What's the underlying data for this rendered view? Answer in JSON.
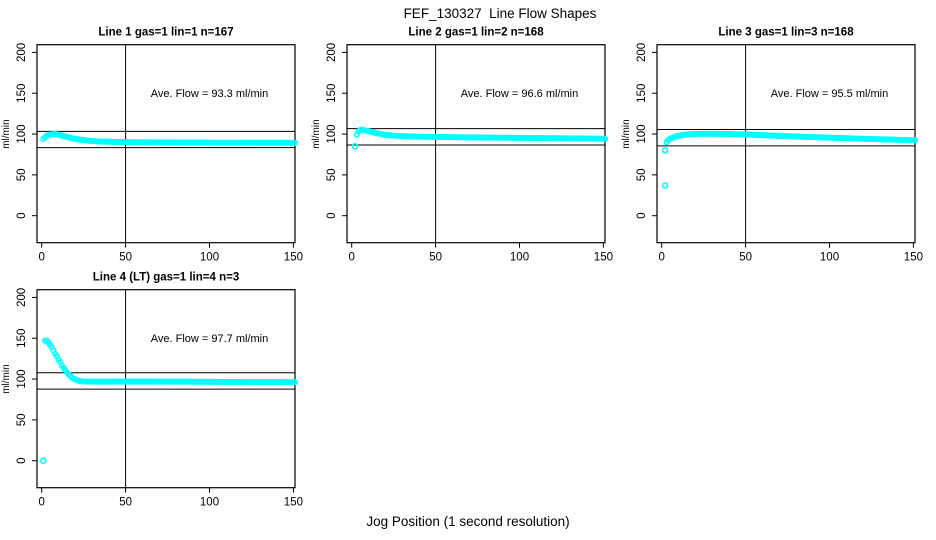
{
  "window": {
    "title": "FEF_130327  Line Flow Shapes",
    "xlabel": "Jog Position (1 second resolution)"
  },
  "chart_data": [
    {
      "type": "scatter",
      "title": "Line 1 gas=1 lin=1 n=167",
      "annotation": "Ave. Flow =  93.3  ml/min",
      "ave_flow_ml_min": 93.3,
      "n": 167,
      "ylabel": "ml/min",
      "x_ticks": [
        0,
        50,
        100,
        150
      ],
      "y_ticks": [
        0,
        50,
        100,
        150,
        200
      ],
      "xlim": [
        0,
        155
      ],
      "ylim": [
        0,
        200
      ],
      "vline_x": 50,
      "hlines": [
        103.3,
        83.3
      ],
      "marker_color": "#00FFFF",
      "keypoints": [
        [
          1,
          94
        ],
        [
          2,
          96
        ],
        [
          3,
          98
        ],
        [
          5,
          99.5
        ],
        [
          8,
          100
        ],
        [
          10,
          99.5
        ],
        [
          12,
          98
        ],
        [
          15,
          96.5
        ],
        [
          18,
          95
        ],
        [
          22,
          93.5
        ],
        [
          26,
          92.3
        ],
        [
          30,
          91.5
        ],
        [
          36,
          90.8
        ],
        [
          44,
          90.3
        ],
        [
          50,
          90.1
        ],
        [
          70,
          89.8
        ],
        [
          90,
          89.6
        ],
        [
          110,
          89.4
        ],
        [
          130,
          89.3
        ],
        [
          151,
          89.2
        ]
      ],
      "outliers": []
    },
    {
      "type": "scatter",
      "title": "Line 2 gas=1 lin=2 n=168",
      "annotation": "Ave. Flow =  96.6  ml/min",
      "ave_flow_ml_min": 96.6,
      "n": 168,
      "ylabel": "ml/min",
      "x_ticks": [
        0,
        50,
        100,
        150
      ],
      "y_ticks": [
        0,
        50,
        100,
        150,
        200
      ],
      "xlim": [
        0,
        155
      ],
      "ylim": [
        0,
        200
      ],
      "vline_x": 50,
      "hlines": [
        106.6,
        86.6
      ],
      "marker_color": "#00FFFF",
      "keypoints": [
        [
          3,
          99
        ],
        [
          4,
          103
        ],
        [
          5,
          105
        ],
        [
          6,
          105.3
        ],
        [
          8,
          104.5
        ],
        [
          10,
          103.5
        ],
        [
          13,
          102
        ],
        [
          16,
          100.5
        ],
        [
          20,
          99
        ],
        [
          25,
          98
        ],
        [
          30,
          97.4
        ],
        [
          40,
          96.8
        ],
        [
          50,
          96.5
        ],
        [
          65,
          96
        ],
        [
          80,
          95.7
        ],
        [
          100,
          95.3
        ],
        [
          120,
          94.9
        ],
        [
          135,
          94.6
        ],
        [
          151,
          94.2
        ]
      ],
      "outliers": [
        [
          2,
          85
        ]
      ]
    },
    {
      "type": "scatter",
      "title": "Line 3 gas=1 lin=3 n=168",
      "annotation": "Ave. Flow =  95.5  ml/min",
      "ave_flow_ml_min": 95.5,
      "n": 168,
      "ylabel": "ml/min",
      "x_ticks": [
        0,
        50,
        100,
        150
      ],
      "y_ticks": [
        0,
        50,
        100,
        150,
        200
      ],
      "xlim": [
        0,
        155
      ],
      "ylim": [
        0,
        200
      ],
      "vline_x": 50,
      "hlines": [
        105.5,
        85.5
      ],
      "marker_color": "#00FFFF",
      "keypoints": [
        [
          3,
          90
        ],
        [
          4,
          92.5
        ],
        [
          5,
          94
        ],
        [
          7,
          96
        ],
        [
          9,
          97.5
        ],
        [
          12,
          98.7
        ],
        [
          15,
          99.4
        ],
        [
          20,
          100
        ],
        [
          25,
          100.3
        ],
        [
          30,
          100.3
        ],
        [
          40,
          100
        ],
        [
          50,
          99.4
        ],
        [
          60,
          98.6
        ],
        [
          70,
          97.8
        ],
        [
          80,
          97
        ],
        [
          90,
          96.3
        ],
        [
          100,
          95.6
        ],
        [
          110,
          94.9
        ],
        [
          120,
          94.2
        ],
        [
          130,
          93.6
        ],
        [
          140,
          93
        ],
        [
          151,
          92.5
        ]
      ],
      "outliers": [
        [
          2,
          80
        ],
        [
          2,
          37
        ]
      ]
    },
    {
      "type": "scatter",
      "title": "Line 4 (LT) gas=1 lin=4 n=3",
      "annotation": "Ave. Flow =  97.7  ml/min",
      "ave_flow_ml_min": 97.7,
      "n": 3,
      "ylabel": "ml/min",
      "x_ticks": [
        0,
        50,
        100,
        150
      ],
      "y_ticks": [
        0,
        50,
        100,
        150,
        200
      ],
      "xlim": [
        0,
        155
      ],
      "ylim": [
        0,
        200
      ],
      "vline_x": 50,
      "hlines": [
        107.7,
        87.7
      ],
      "marker_color": "#00FFFF",
      "keypoints": [
        [
          2,
          147
        ],
        [
          3,
          147
        ],
        [
          4,
          145
        ],
        [
          5,
          142
        ],
        [
          6,
          139
        ],
        [
          7,
          135
        ],
        [
          8,
          131
        ],
        [
          9,
          128
        ],
        [
          10,
          124
        ],
        [
          11,
          121
        ],
        [
          12,
          117
        ],
        [
          13,
          114
        ],
        [
          14,
          111
        ],
        [
          15,
          108
        ],
        [
          16,
          106
        ],
        [
          17,
          104
        ],
        [
          18,
          102
        ],
        [
          19,
          100.5
        ],
        [
          20,
          99.5
        ],
        [
          22,
          98
        ],
        [
          24,
          97.3
        ],
        [
          26,
          97
        ],
        [
          30,
          96.8
        ],
        [
          40,
          96.8
        ],
        [
          50,
          97
        ],
        [
          60,
          96.9
        ],
        [
          80,
          96.8
        ],
        [
          100,
          96.6
        ],
        [
          120,
          96.4
        ],
        [
          151,
          96.2
        ]
      ],
      "outliers": [
        [
          1,
          0
        ]
      ]
    }
  ]
}
